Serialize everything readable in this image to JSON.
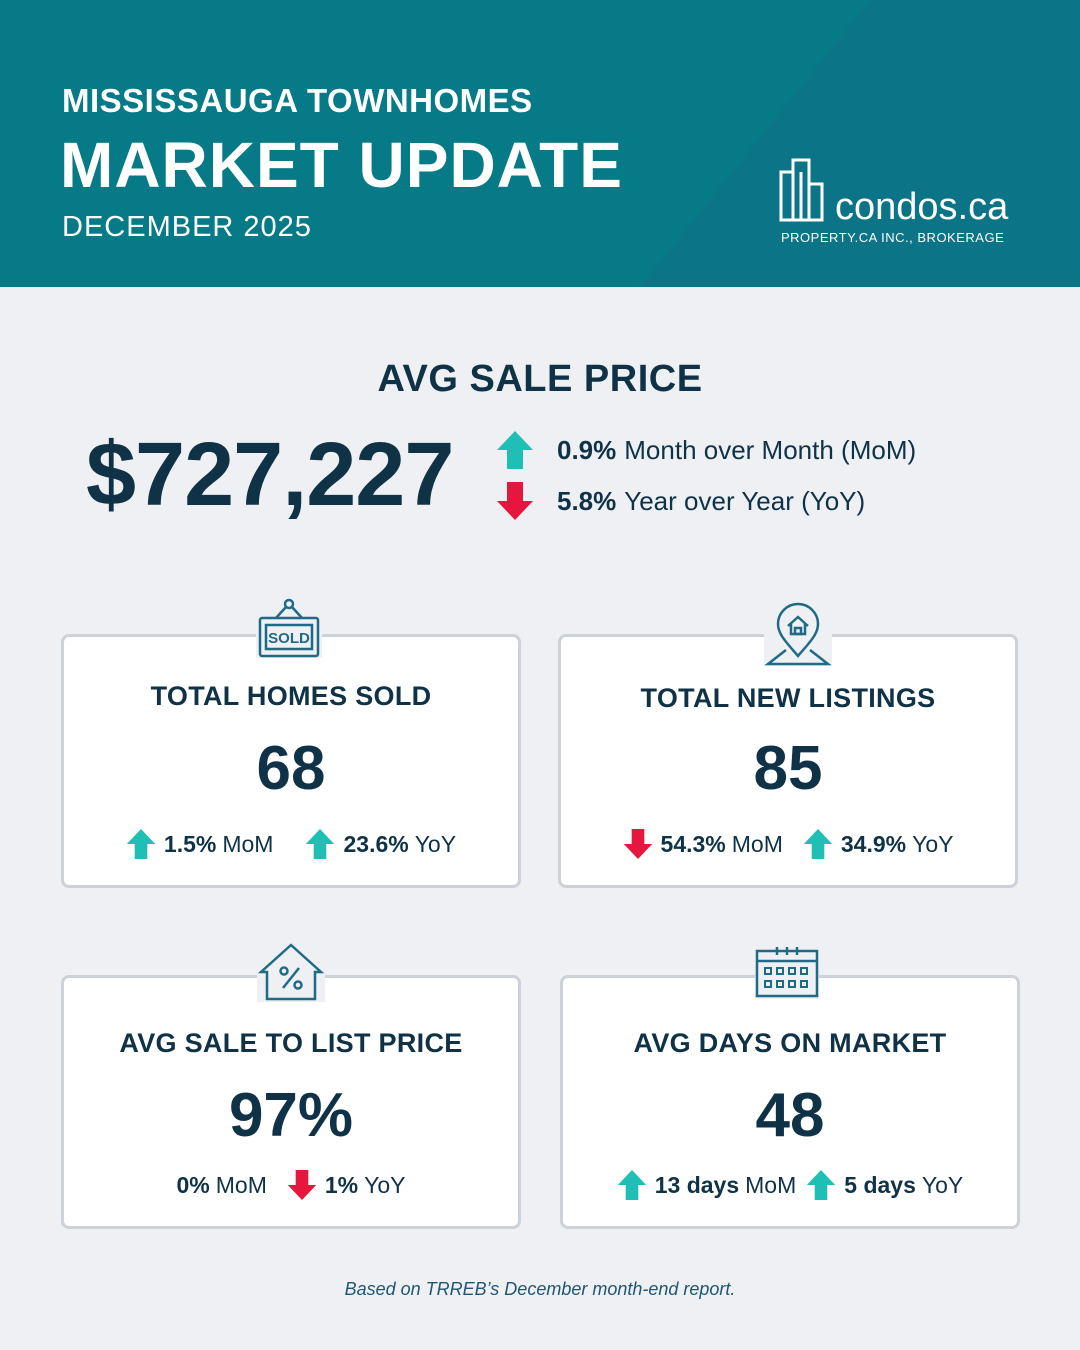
{
  "header": {
    "subtitle": "MISSISSAUGA TOWNHOMES",
    "title": "MARKET UPDATE",
    "date": "DECEMBER 2025",
    "logo_text": "condos.ca",
    "logo_sub": "PROPERTY.CA INC., BROKERAGE"
  },
  "avg_sale_price": {
    "title": "AVG SALE PRICE",
    "value": "$727,227",
    "mom_value": "0.9%",
    "mom_label": "Month over Month (MoM)",
    "mom_direction": "up",
    "yoy_value": "5.8%",
    "yoy_label": "Year over Year (YoY)",
    "yoy_direction": "down"
  },
  "cards": {
    "homes_sold": {
      "icon": "sold-sign-icon",
      "title": "TOTAL HOMES SOLD",
      "value": "68",
      "mom_value": "1.5%",
      "mom_label": "MoM",
      "mom_direction": "up",
      "yoy_value": "23.6%",
      "yoy_label": "YoY",
      "yoy_direction": "up"
    },
    "new_listings": {
      "icon": "house-location-pin-icon",
      "title": "TOTAL NEW LISTINGS",
      "value": "85",
      "mom_value": "54.3%",
      "mom_label": "MoM",
      "mom_direction": "down",
      "yoy_value": "34.9%",
      "yoy_label": "YoY",
      "yoy_direction": "up"
    },
    "sale_to_list": {
      "icon": "house-percent-icon",
      "title": "AVG SALE TO LIST PRICE",
      "value": "97%",
      "mom_value": "0%",
      "mom_label": "MoM",
      "mom_direction": "none",
      "yoy_value": "1%",
      "yoy_label": "YoY",
      "yoy_direction": "down"
    },
    "days_on_market": {
      "icon": "calendar-icon",
      "title": "AVG DAYS ON MARKET",
      "value": "48",
      "mom_value": "13 days",
      "mom_label": "MoM",
      "mom_direction": "up",
      "yoy_value": "5 days",
      "yoy_label": "YoY",
      "yoy_direction": "up"
    }
  },
  "colors": {
    "header_bg": "#077a87",
    "dark_text": "#0f3247",
    "up_arrow": "#1fbfb6",
    "down_arrow": "#e5173f",
    "card_border": "#cdd2d9",
    "page_bg": "#eff0f4"
  },
  "footer": "Based on TRREB’s December month-end report."
}
